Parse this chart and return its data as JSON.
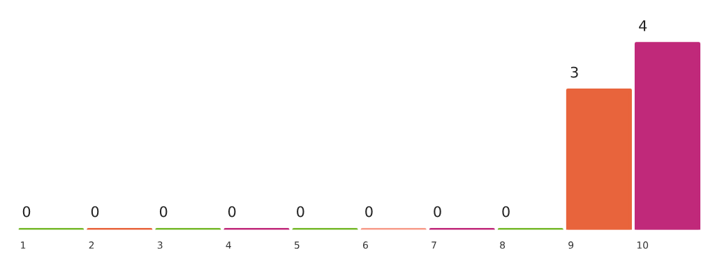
{
  "chart_data": {
    "type": "bar",
    "categories": [
      "1",
      "2",
      "3",
      "4",
      "5",
      "6",
      "7",
      "8",
      "9",
      "10"
    ],
    "values": [
      0,
      0,
      0,
      0,
      0,
      0,
      0,
      0,
      3,
      4
    ],
    "colors": [
      "#76b82a",
      "#e8643c",
      "#76b82a",
      "#c0297a",
      "#76b82a",
      "#f79c8a",
      "#c0297a",
      "#76b82a",
      "#e8643c",
      "#c0297a"
    ],
    "data_labels": true,
    "grid": false,
    "legend": false
  }
}
